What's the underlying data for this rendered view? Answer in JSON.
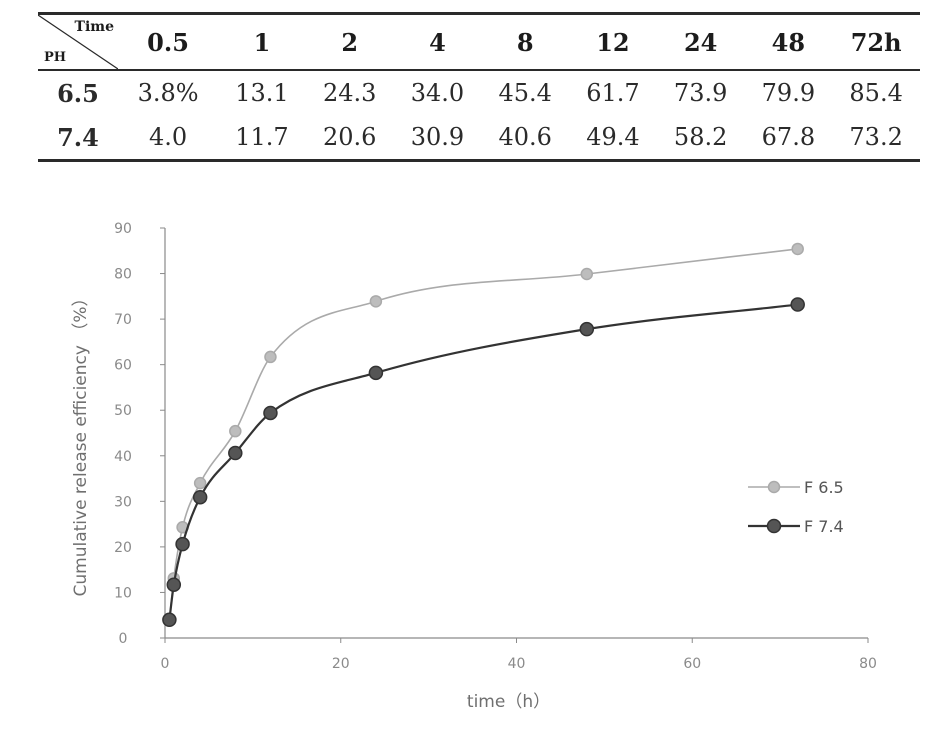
{
  "table": {
    "corner_top": "Time",
    "corner_bottom": "PH",
    "headers": [
      "0.5",
      "1",
      "2",
      "4",
      "8",
      "12",
      "24",
      "48",
      "72h"
    ],
    "rows": [
      {
        "ph": "6.5",
        "values": [
          "3.8%",
          "13.1",
          "24.3",
          "34.0",
          "45.4",
          "61.7",
          "73.9",
          "79.9",
          "85.4"
        ]
      },
      {
        "ph": "7.4",
        "values": [
          "4.0",
          "11.7",
          "20.6",
          "30.9",
          "40.6",
          "49.4",
          "58.2",
          "67.8",
          "73.2"
        ]
      }
    ]
  },
  "chart_data": {
    "type": "line",
    "title": "",
    "xlabel": "time（h）",
    "ylabel": "Cumulative release efficiency （%）",
    "xlim": [
      0,
      80
    ],
    "ylim": [
      0,
      90
    ],
    "xticks": [
      0,
      20,
      40,
      60,
      80
    ],
    "yticks": [
      0,
      10,
      20,
      30,
      40,
      50,
      60,
      70,
      80,
      90
    ],
    "grid": false,
    "legend_position": "right",
    "x": [
      0.5,
      1,
      2,
      4,
      8,
      12,
      24,
      48,
      72
    ],
    "series": [
      {
        "name": "F 6.5",
        "color": "#aaaaaa",
        "values": [
          3.8,
          13.1,
          24.3,
          34.0,
          45.4,
          61.7,
          73.9,
          79.9,
          85.4
        ]
      },
      {
        "name": "F 7.4",
        "color": "#333333",
        "values": [
          4.0,
          11.7,
          20.6,
          30.9,
          40.6,
          49.4,
          58.2,
          67.8,
          73.2
        ]
      }
    ]
  }
}
